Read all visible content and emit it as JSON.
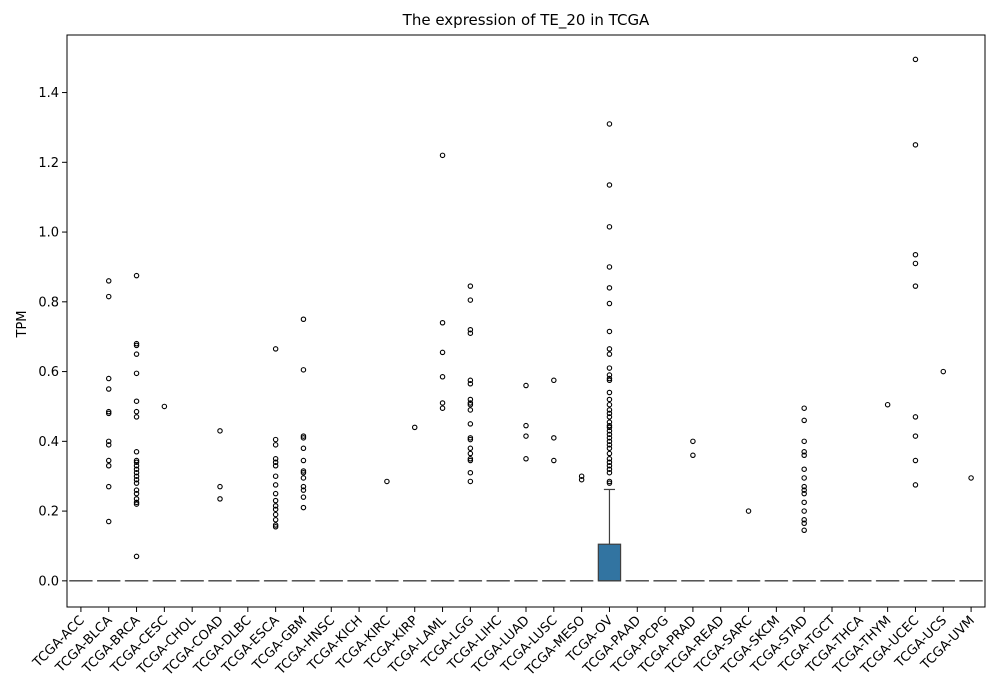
{
  "chart_data": {
    "type": "box",
    "title": "The expression of TE_20 in TCGA",
    "xlabel": "",
    "ylabel": "TPM",
    "ylim": [
      -0.075,
      1.565
    ],
    "yticks": [
      0.0,
      0.2,
      0.4,
      0.6,
      0.8,
      1.0,
      1.2,
      1.4
    ],
    "ytick_labels": [
      "0.0",
      "0.2",
      "0.4",
      "0.6",
      "0.8",
      "1.0",
      "1.2",
      "1.4"
    ],
    "grid": false,
    "box_color": "#3274a1",
    "categories": [
      "TCGA-ACC",
      "TCGA-BLCA",
      "TCGA-BRCA",
      "TCGA-CESC",
      "TCGA-CHOL",
      "TCGA-COAD",
      "TCGA-DLBC",
      "TCGA-ESCA",
      "TCGA-GBM",
      "TCGA-HNSC",
      "TCGA-KICH",
      "TCGA-KIRC",
      "TCGA-KIRP",
      "TCGA-LAML",
      "TCGA-LGG",
      "TCGA-LIHC",
      "TCGA-LUAD",
      "TCGA-LUSC",
      "TCGA-MESO",
      "TCGA-OV",
      "TCGA-PAAD",
      "TCGA-PCPG",
      "TCGA-PRAD",
      "TCGA-READ",
      "TCGA-SARC",
      "TCGA-SKCM",
      "TCGA-STAD",
      "TCGA-TGCT",
      "TCGA-THCA",
      "TCGA-THYM",
      "TCGA-UCEC",
      "TCGA-UCS",
      "TCGA-UVM"
    ],
    "boxes": [
      {
        "q1": 0,
        "median": 0,
        "q3": 0,
        "whisker_low": 0,
        "whisker_high": 0,
        "outliers": []
      },
      {
        "q1": 0,
        "median": 0,
        "q3": 0,
        "whisker_low": 0,
        "whisker_high": 0,
        "outliers": [
          0.86,
          0.815,
          0.58,
          0.55,
          0.485,
          0.48,
          0.4,
          0.39,
          0.345,
          0.33,
          0.27,
          0.17
        ]
      },
      {
        "q1": 0,
        "median": 0,
        "q3": 0,
        "whisker_low": 0,
        "whisker_high": 0,
        "outliers": [
          0.875,
          0.68,
          0.675,
          0.65,
          0.595,
          0.515,
          0.485,
          0.47,
          0.37,
          0.345,
          0.34,
          0.33,
          0.32,
          0.31,
          0.3,
          0.29,
          0.28,
          0.26,
          0.25,
          0.235,
          0.225,
          0.22,
          0.07
        ]
      },
      {
        "q1": 0,
        "median": 0,
        "q3": 0,
        "whisker_low": 0,
        "whisker_high": 0,
        "outliers": [
          0.5
        ]
      },
      {
        "q1": 0,
        "median": 0,
        "q3": 0,
        "whisker_low": 0,
        "whisker_high": 0,
        "outliers": []
      },
      {
        "q1": 0,
        "median": 0,
        "q3": 0,
        "whisker_low": 0,
        "whisker_high": 0,
        "outliers": [
          0.43,
          0.27,
          0.235
        ]
      },
      {
        "q1": 0,
        "median": 0,
        "q3": 0,
        "whisker_low": 0,
        "whisker_high": 0,
        "outliers": []
      },
      {
        "q1": 0,
        "median": 0,
        "q3": 0,
        "whisker_low": 0,
        "whisker_high": 0,
        "outliers": [
          0.665,
          0.405,
          0.39,
          0.35,
          0.34,
          0.33,
          0.3,
          0.275,
          0.25,
          0.23,
          0.215,
          0.205,
          0.19,
          0.175,
          0.16,
          0.155
        ]
      },
      {
        "q1": 0,
        "median": 0,
        "q3": 0,
        "whisker_low": 0,
        "whisker_high": 0,
        "outliers": [
          0.75,
          0.605,
          0.415,
          0.41,
          0.38,
          0.345,
          0.315,
          0.31,
          0.295,
          0.27,
          0.26,
          0.24,
          0.21
        ]
      },
      {
        "q1": 0,
        "median": 0,
        "q3": 0,
        "whisker_low": 0,
        "whisker_high": 0,
        "outliers": []
      },
      {
        "q1": 0,
        "median": 0,
        "q3": 0,
        "whisker_low": 0,
        "whisker_high": 0,
        "outliers": []
      },
      {
        "q1": 0,
        "median": 0,
        "q3": 0,
        "whisker_low": 0,
        "whisker_high": 0,
        "outliers": [
          0.285
        ]
      },
      {
        "q1": 0,
        "median": 0,
        "q3": 0,
        "whisker_low": 0,
        "whisker_high": 0,
        "outliers": [
          0.44
        ]
      },
      {
        "q1": 0,
        "median": 0,
        "q3": 0,
        "whisker_low": 0,
        "whisker_high": 0,
        "outliers": [
          1.22,
          0.74,
          0.655,
          0.585,
          0.51,
          0.495
        ]
      },
      {
        "q1": 0,
        "median": 0,
        "q3": 0,
        "whisker_low": 0,
        "whisker_high": 0,
        "outliers": [
          0.845,
          0.805,
          0.72,
          0.71,
          0.575,
          0.565,
          0.52,
          0.51,
          0.505,
          0.49,
          0.45,
          0.41,
          0.405,
          0.38,
          0.365,
          0.35,
          0.345,
          0.31,
          0.285
        ]
      },
      {
        "q1": 0,
        "median": 0,
        "q3": 0,
        "whisker_low": 0,
        "whisker_high": 0,
        "outliers": []
      },
      {
        "q1": 0,
        "median": 0,
        "q3": 0,
        "whisker_low": 0,
        "whisker_high": 0,
        "outliers": [
          0.56,
          0.445,
          0.415,
          0.35
        ]
      },
      {
        "q1": 0,
        "median": 0,
        "q3": 0,
        "whisker_low": 0,
        "whisker_high": 0,
        "outliers": [
          0.575,
          0.41,
          0.345
        ]
      },
      {
        "q1": 0,
        "median": 0,
        "q3": 0,
        "whisker_low": 0,
        "whisker_high": 0,
        "outliers": [
          0.3,
          0.29
        ]
      },
      {
        "q1": 0,
        "median": 0,
        "q3": 0.105,
        "whisker_low": 0,
        "whisker_high": 0.262,
        "outliers": [
          1.31,
          1.135,
          1.015,
          0.9,
          0.84,
          0.795,
          0.715,
          0.665,
          0.65,
          0.61,
          0.59,
          0.58,
          0.575,
          0.54,
          0.52,
          0.505,
          0.49,
          0.48,
          0.47,
          0.455,
          0.445,
          0.44,
          0.43,
          0.42,
          0.41,
          0.4,
          0.39,
          0.38,
          0.365,
          0.35,
          0.34,
          0.33,
          0.32,
          0.31,
          0.285,
          0.28
        ]
      },
      {
        "q1": 0,
        "median": 0,
        "q3": 0,
        "whisker_low": 0,
        "whisker_high": 0,
        "outliers": []
      },
      {
        "q1": 0,
        "median": 0,
        "q3": 0,
        "whisker_low": 0,
        "whisker_high": 0,
        "outliers": []
      },
      {
        "q1": 0,
        "median": 0,
        "q3": 0,
        "whisker_low": 0,
        "whisker_high": 0,
        "outliers": [
          0.4,
          0.36
        ]
      },
      {
        "q1": 0,
        "median": 0,
        "q3": 0,
        "whisker_low": 0,
        "whisker_high": 0,
        "outliers": []
      },
      {
        "q1": 0,
        "median": 0,
        "q3": 0,
        "whisker_low": 0,
        "whisker_high": 0,
        "outliers": [
          0.2
        ]
      },
      {
        "q1": 0,
        "median": 0,
        "q3": 0,
        "whisker_low": 0,
        "whisker_high": 0,
        "outliers": []
      },
      {
        "q1": 0,
        "median": 0,
        "q3": 0,
        "whisker_low": 0,
        "whisker_high": 0,
        "outliers": [
          0.495,
          0.46,
          0.4,
          0.37,
          0.36,
          0.32,
          0.295,
          0.27,
          0.26,
          0.25,
          0.225,
          0.2,
          0.175,
          0.165,
          0.145
        ]
      },
      {
        "q1": 0,
        "median": 0,
        "q3": 0,
        "whisker_low": 0,
        "whisker_high": 0,
        "outliers": []
      },
      {
        "q1": 0,
        "median": 0,
        "q3": 0,
        "whisker_low": 0,
        "whisker_high": 0,
        "outliers": []
      },
      {
        "q1": 0,
        "median": 0,
        "q3": 0,
        "whisker_low": 0,
        "whisker_high": 0,
        "outliers": [
          0.505
        ]
      },
      {
        "q1": 0,
        "median": 0,
        "q3": 0,
        "whisker_low": 0,
        "whisker_high": 0,
        "outliers": [
          1.495,
          1.25,
          0.935,
          0.91,
          0.845,
          0.47,
          0.415,
          0.345,
          0.275
        ]
      },
      {
        "q1": 0,
        "median": 0,
        "q3": 0,
        "whisker_low": 0,
        "whisker_high": 0,
        "outliers": [
          0.6
        ]
      },
      {
        "q1": 0,
        "median": 0,
        "q3": 0,
        "whisker_low": 0,
        "whisker_high": 0,
        "outliers": [
          0.295
        ]
      }
    ]
  }
}
